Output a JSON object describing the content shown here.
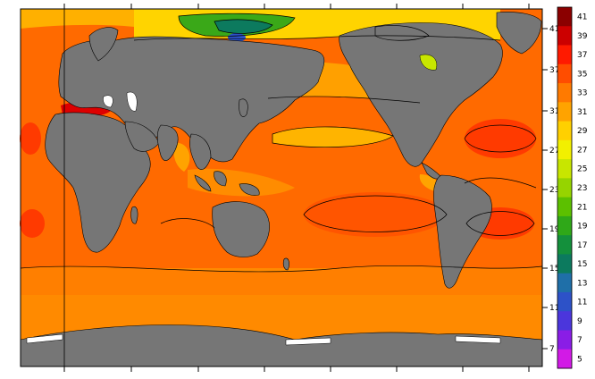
{
  "map": {
    "projection": "equirectangular",
    "ocean_base_color": "#ff6a00",
    "land_color": "#767676",
    "ice_color": "#ffffff"
  },
  "latitude_axis": {
    "tick_labels": [
      "41",
      "37",
      "31",
      "27",
      "23",
      "19",
      "15",
      "11",
      "7"
    ]
  },
  "colorbar": {
    "levels": [
      {
        "label": "41",
        "color": "#8b0000"
      },
      {
        "label": "39",
        "color": "#cc0000"
      },
      {
        "label": "37",
        "color": "#ff1a00"
      },
      {
        "label": "35",
        "color": "#ff4d00"
      },
      {
        "label": "33",
        "color": "#ff7a00"
      },
      {
        "label": "31",
        "color": "#ffa300"
      },
      {
        "label": "29",
        "color": "#ffd000"
      },
      {
        "label": "27",
        "color": "#f2f000"
      },
      {
        "label": "25",
        "color": "#c8e600"
      },
      {
        "label": "23",
        "color": "#96d400"
      },
      {
        "label": "21",
        "color": "#5cc000"
      },
      {
        "label": "19",
        "color": "#2fa818"
      },
      {
        "label": "17",
        "color": "#14903c"
      },
      {
        "label": "15",
        "color": "#0c7a5e"
      },
      {
        "label": "13",
        "color": "#1f6fa8"
      },
      {
        "label": "11",
        "color": "#2d52c8"
      },
      {
        "label": "9",
        "color": "#4b36dc"
      },
      {
        "label": "7",
        "color": "#8a1de6"
      },
      {
        "label": "5",
        "color": "#d21ae6"
      }
    ]
  }
}
